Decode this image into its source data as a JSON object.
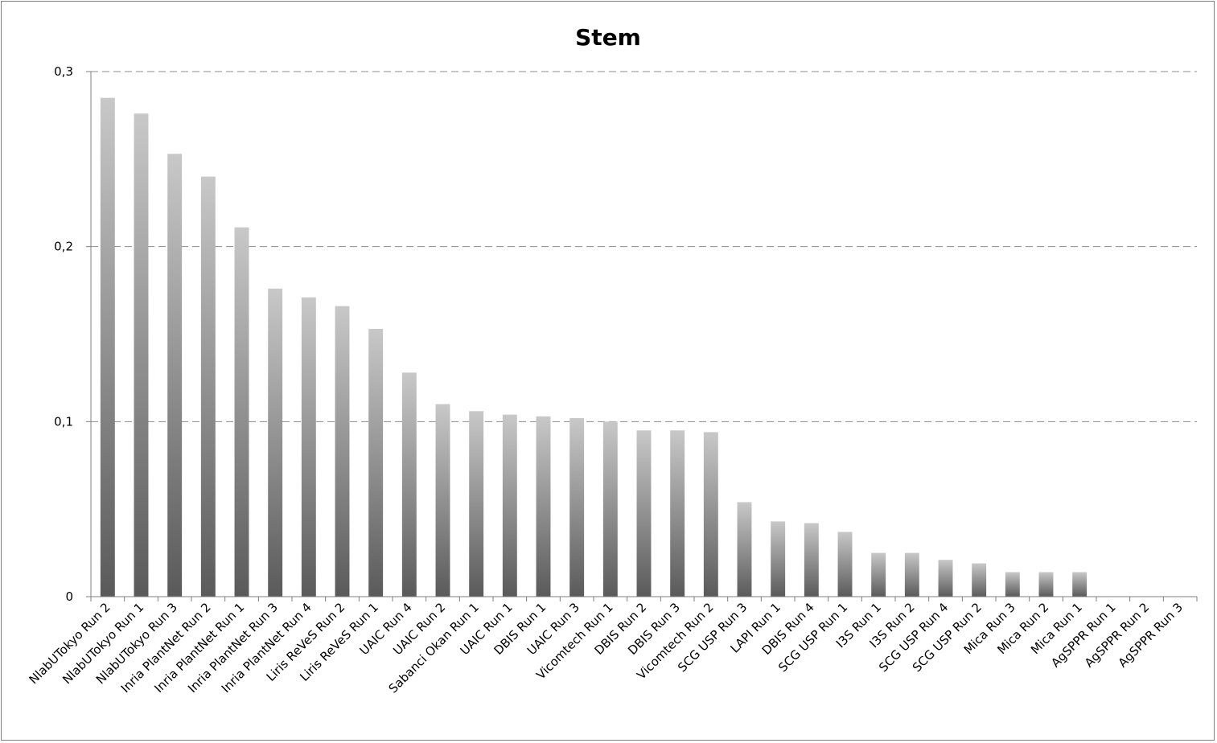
{
  "chart_data": {
    "type": "bar",
    "title": "Stem",
    "xlabel": "",
    "ylabel": "",
    "ylim": [
      0,
      0.3
    ],
    "yticks": [
      {
        "value": 0,
        "label": "0"
      },
      {
        "value": 0.1,
        "label": "0,1"
      },
      {
        "value": 0.2,
        "label": "0,2"
      },
      {
        "value": 0.3,
        "label": "0,3"
      }
    ],
    "grid": "horizontal dashed",
    "legend": "none",
    "bar_color_top": "#c8c8c8",
    "bar_color_bottom": "#5a5a5a",
    "categories": [
      "NlabUTokyo Run 2",
      "NlabUTokyo Run 1",
      "NlabUTokyo Run 3",
      "Inria PlantNet Run 2",
      "Inria PlantNet Run 1",
      "Inria PlantNet Run 3",
      "Inria PlantNet Run 4",
      "Liris ReVeS Run 2",
      "Liris ReVeS Run 1",
      "UAIC Run 4",
      "UAIC Run 2",
      "Sabanci Okan Run 1",
      "UAIC Run 1",
      "DBIS Run 1",
      "UAIC Run 3",
      "Vicomtech Run 1",
      "DBIS Run 2",
      "DBIS Run 3",
      "Vicomtech Run 2",
      "SCG USP Run 3",
      "LAPI Run 1",
      "DBIS Run 4",
      "SCG USP Run 1",
      "I3S Run 1",
      "I3S Run 2",
      "SCG USP Run 4",
      "SCG USP Run 2",
      "Mica Run 3",
      "Mica Run 2",
      "Mica Run 1",
      "AgSPPR Run 1",
      "AgSPPR Run 2",
      "AgSPPR Run 3"
    ],
    "values": [
      0.285,
      0.276,
      0.253,
      0.24,
      0.211,
      0.176,
      0.171,
      0.166,
      0.153,
      0.128,
      0.11,
      0.106,
      0.104,
      0.103,
      0.102,
      0.1,
      0.095,
      0.095,
      0.094,
      0.054,
      0.043,
      0.042,
      0.037,
      0.025,
      0.025,
      0.021,
      0.019,
      0.014,
      0.014,
      0.014,
      0,
      0,
      0
    ]
  }
}
